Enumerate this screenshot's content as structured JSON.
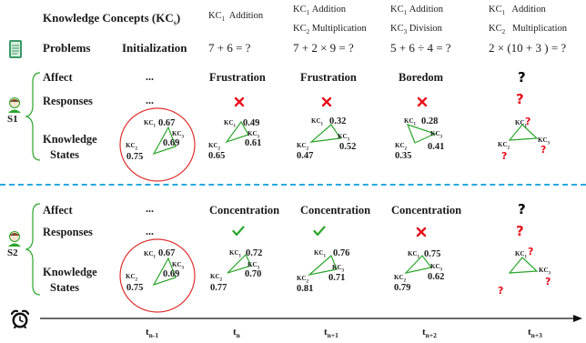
{
  "header": {
    "kc_label_main": "Knowledge Concepts (KC",
    "kc_label_sub": "s",
    "kc_label_end": ")",
    "problems_label": "Problems",
    "init_label": "Initialization"
  },
  "columns": [
    {
      "kcs": [
        {
          "sub": "1",
          "name": "Addition"
        }
      ],
      "problem": "7 + 6 = ?"
    },
    {
      "kcs": [
        {
          "sub": "1",
          "name": "Addition"
        },
        {
          "sub": "2",
          "name": "Multiplication"
        }
      ],
      "problem": "7 + 2 × 9 = ?"
    },
    {
      "kcs": [
        {
          "sub": "1",
          "name": "Addition"
        },
        {
          "sub": "3",
          "name": "Division"
        }
      ],
      "problem": "5 + 6 ÷ 4 = ?"
    },
    {
      "kcs": [
        {
          "sub": "1",
          "name": "Addition"
        },
        {
          "sub": "2",
          "name": "Multiplication"
        }
      ],
      "problem": "2 × (10 + 3 ) = ?"
    }
  ],
  "kc_prefix": "KC",
  "rows": {
    "affect": "Affect",
    "responses": "Responses",
    "knowledge": "Knowledge",
    "states": "States"
  },
  "students": [
    {
      "label": "S1",
      "init_affect": "...",
      "init_response": "...",
      "affects": [
        "Frustration",
        "Frustration",
        "Boredom",
        "?"
      ],
      "responses": [
        "wrong",
        "wrong",
        "wrong",
        "unknown"
      ],
      "init_values": [
        "0.67",
        "0.69",
        "0.75"
      ],
      "states": [
        [
          "0.49",
          "0.61",
          "0.65"
        ],
        [
          "0.32",
          "0.52",
          "0.47"
        ],
        [
          "0.28",
          "0.41",
          "0.35"
        ],
        [
          "?",
          "?",
          "?"
        ]
      ]
    },
    {
      "label": "S2",
      "init_affect": "...",
      "init_response": "...",
      "affects": [
        "Concentration",
        "Concentration",
        "Concentration",
        "?"
      ],
      "responses": [
        "correct",
        "correct",
        "wrong",
        "unknown"
      ],
      "init_values": [
        "0.67",
        "0.69",
        "0.75"
      ],
      "states": [
        [
          "0.72",
          "0.70",
          "0.77"
        ],
        [
          "0.76",
          "0.71",
          "0.81"
        ],
        [
          "0.75",
          "0.62",
          "0.79"
        ],
        [
          "?",
          "?",
          "?"
        ]
      ]
    }
  ],
  "timeline": {
    "ticks": [
      {
        "base": "t",
        "sub": "n-1"
      },
      {
        "base": "t",
        "sub": "n"
      },
      {
        "base": "t",
        "sub": "n+1"
      },
      {
        "base": "t",
        "sub": "n+2"
      },
      {
        "base": "t",
        "sub": "n+3"
      }
    ]
  },
  "colors": {
    "wrong": "#e8101a",
    "correct": "#2aa52a",
    "triangle": "#2aa52a",
    "circle": "#e03030",
    "divider": "#29a8e0",
    "question": "#e8101a"
  },
  "icons": {
    "problems": "notebook-icon",
    "student": "student-avatar-icon",
    "clock": "alarm-clock-icon"
  }
}
